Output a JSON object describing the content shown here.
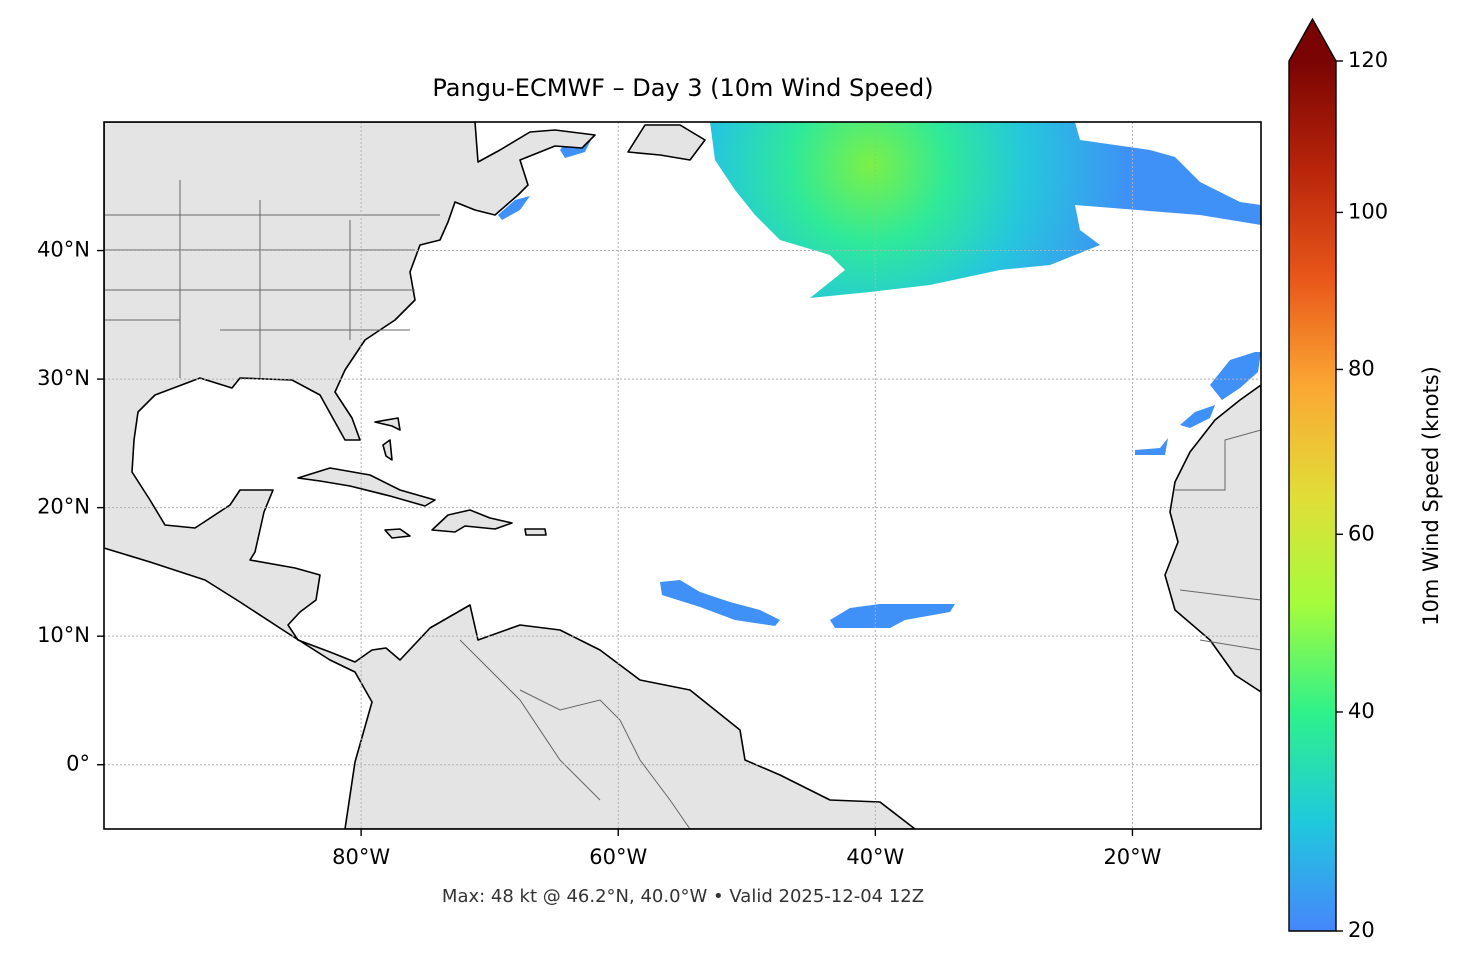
{
  "chart_data": {
    "type": "map",
    "title": "Pangu-ECMWF – Day 3 (10m Wind Speed)",
    "footer": "Max: 48 kt @ 46.2°N, 40.0°W • Valid 2025-12-04 12Z",
    "xlim": [
      -100,
      -10
    ],
    "ylim": [
      -5,
      50
    ],
    "xticks": [
      {
        "value": -80,
        "label": "80°W"
      },
      {
        "value": -60,
        "label": "60°W"
      },
      {
        "value": -40,
        "label": "40°W"
      },
      {
        "value": -20,
        "label": "20°W"
      }
    ],
    "yticks": [
      {
        "value": 0,
        "label": "0°"
      },
      {
        "value": 10,
        "label": "10°N"
      },
      {
        "value": 20,
        "label": "20°N"
      },
      {
        "value": 30,
        "label": "30°N"
      },
      {
        "value": 40,
        "label": "40°N"
      }
    ],
    "grid": true,
    "colorbar": {
      "label": "10m Wind Speed (knots)",
      "lim": [
        20,
        120
      ],
      "ticks": [
        20,
        40,
        60,
        80,
        100,
        120
      ],
      "colors": [
        "#4686fb",
        "#1fc9dd",
        "#2ef18b",
        "#a4fc3c",
        "#e1dd37",
        "#fba833",
        "#e9571a",
        "#b8250a",
        "#7a0403"
      ],
      "extend": "max"
    }
  }
}
